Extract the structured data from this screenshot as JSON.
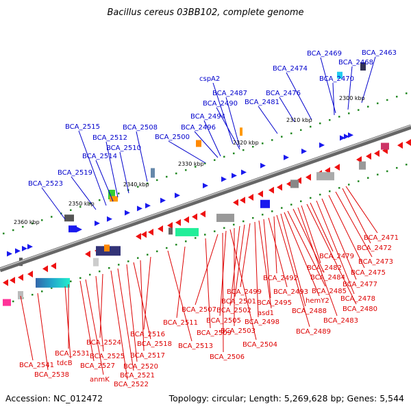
{
  "title": "Bacillus cereus 03BB102, complete genome",
  "footer": {
    "accession": "Accession: NC_012472",
    "topology": "Topology: circular; Length: 5,269,628 bp; Genes: 5,544"
  },
  "colors": {
    "plus_label": "#0000cc",
    "minus_label": "#dd0000",
    "backbone": "#888888",
    "tick_dot": "#228822"
  },
  "ticks": [
    "2300 kbp",
    "2310 kbp",
    "2320 kbp",
    "2330 kbp",
    "2340 kbp",
    "2350 kbp",
    "2360 kbp"
  ],
  "plus_labels": [
    "BCA_2463",
    "BCA_2468",
    "BCA_2469",
    "BCA_2470",
    "BCA_2474",
    "BCA_2476",
    "BCA_2481",
    "cspA2",
    "BCA_2487",
    "BCA_2490",
    "BCA_2494",
    "BCA_2496",
    "BCA_2500",
    "BCA_2508",
    "BCA_2510",
    "BCA_2512",
    "BCA_2514",
    "BCA_2515",
    "BCA_2519",
    "BCA_2523"
  ],
  "minus_labels": [
    "BCA_2471",
    "BCA_2472",
    "BCA_2473",
    "BCA_2475",
    "BCA_2477",
    "BCA_2478",
    "BCA_2479",
    "BCA_2480",
    "BCA_2482",
    "BCA_2483",
    "BCA_2484",
    "BCA_2485",
    "hemY2",
    "BCA_2488",
    "BCA_2489",
    "BCA_2492",
    "BCA_2493",
    "BCA_2495",
    "asd1",
    "BCA_2498",
    "BCA_2499",
    "BCA_2501",
    "BCA_2502",
    "BCA_2503",
    "BCA_2504",
    "BCA_2505",
    "BCA_2506",
    "BCA_2507",
    "BCA_2509",
    "BCA_2511",
    "BCA_2513",
    "BCA_2516",
    "BCA_2517",
    "BCA_2518",
    "BCA_2520",
    "BCA_2521",
    "BCA_2522",
    "BCA_2524",
    "BCA_2525",
    "anmK",
    "BCA_2527",
    "BCA_2531",
    "tdcB",
    "BCA_2538",
    "BCA_2541"
  ]
}
